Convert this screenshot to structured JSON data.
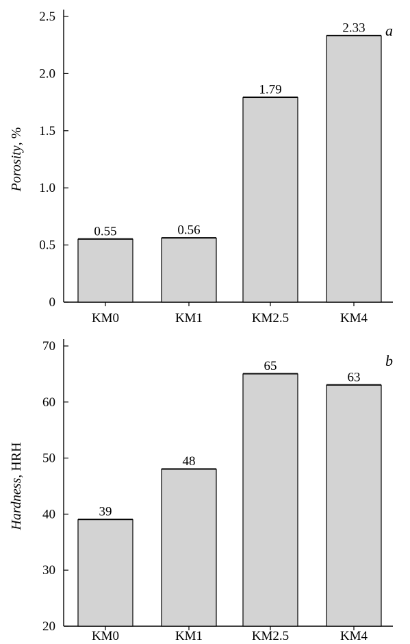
{
  "chart_data": [
    {
      "type": "bar",
      "panel": "a",
      "categories": [
        "KM0",
        "KM1",
        "KM2.5",
        "KM4"
      ],
      "values": [
        0.55,
        0.56,
        1.79,
        2.33
      ],
      "data_labels": [
        "0.55",
        "0.56",
        "1.79",
        "2.33"
      ],
      "ylabel_italic": "Porosity",
      "ylabel_rest": ", %",
      "ylim": [
        0,
        2.5
      ],
      "yticks": [
        0,
        0.5,
        1.0,
        1.5,
        2.0,
        2.5
      ],
      "ytick_labels": [
        "0",
        "0.5",
        "1.0",
        "1.5",
        "2.0",
        "2.5"
      ]
    },
    {
      "type": "bar",
      "panel": "b",
      "categories": [
        "KM0",
        "KM1",
        "KM2.5",
        "KM4"
      ],
      "values": [
        39,
        48,
        65,
        63
      ],
      "data_labels": [
        "39",
        "48",
        "65",
        "63"
      ],
      "ylabel_italic": "Hardness",
      "ylabel_rest": ", HRH",
      "ylim": [
        20,
        70
      ],
      "yticks": [
        20,
        30,
        40,
        50,
        60,
        70
      ],
      "ytick_labels": [
        "20",
        "30",
        "40",
        "50",
        "60",
        "70"
      ]
    }
  ]
}
